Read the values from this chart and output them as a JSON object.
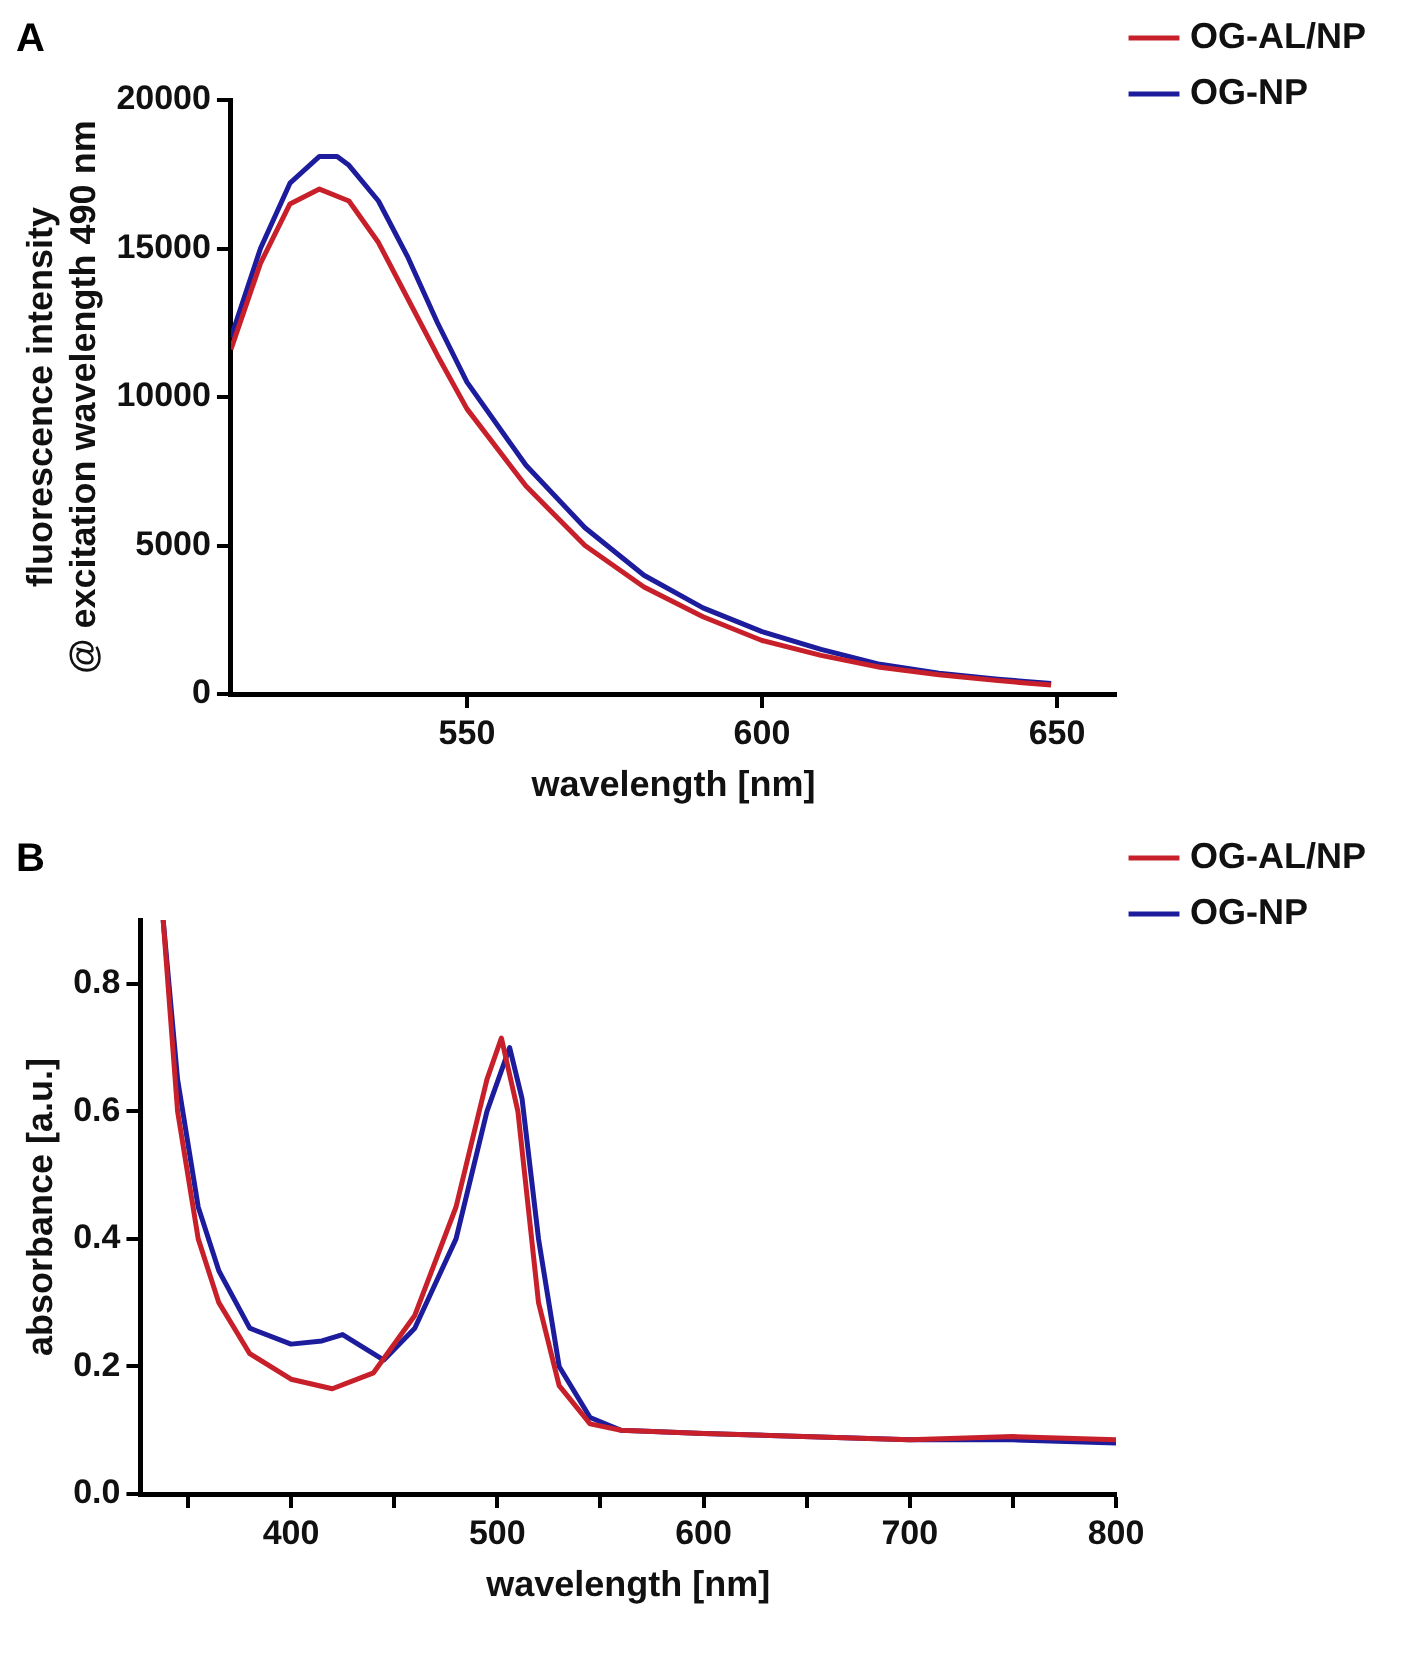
{
  "chart_data": [
    {
      "type": "line",
      "title": "A",
      "xlabel": "wavelength [nm]",
      "ylabel": "fluorescence intensity\n@ excitation wavelength 490 nm",
      "xlim": [
        510,
        660
      ],
      "xticks": [
        550,
        600,
        650
      ],
      "ylim": [
        0,
        20000
      ],
      "yticks": [
        0,
        5000,
        10000,
        15000,
        20000
      ],
      "grid": false,
      "legend": "top right",
      "marker": "none",
      "series": [
        {
          "name": "OG-AL/NP",
          "color": "#c8202a",
          "x": [
            510,
            515,
            520,
            525,
            530,
            535,
            540,
            545,
            550,
            560,
            570,
            580,
            590,
            600,
            610,
            620,
            630,
            640,
            649
          ],
          "values": [
            11600,
            14500,
            16500,
            17000,
            16600,
            15200,
            13300,
            11400,
            9600,
            7000,
            5000,
            3600,
            2600,
            1800,
            1300,
            900,
            650,
            450,
            300
          ]
        },
        {
          "name": "OG-NP",
          "color": "#1c1c9c",
          "x": [
            510,
            515,
            520,
            525,
            528,
            530,
            535,
            540,
            545,
            550,
            560,
            570,
            580,
            590,
            600,
            610,
            620,
            630,
            640,
            649
          ],
          "values": [
            12000,
            15000,
            17200,
            18100,
            18100,
            17800,
            16600,
            14700,
            12500,
            10500,
            7700,
            5600,
            4000,
            2900,
            2100,
            1500,
            1000,
            700,
            500,
            350
          ]
        }
      ]
    },
    {
      "type": "line",
      "title": "B",
      "xlabel": "wavelength [nm]",
      "ylabel": "absorbance [a.u.]",
      "xlim": [
        327,
        800
      ],
      "xticks": [
        {
          "value": 350,
          "label": null
        },
        400,
        {
          "value": 450,
          "label": null
        },
        500,
        {
          "value": 550,
          "label": null
        },
        600,
        {
          "value": 650,
          "label": null
        },
        700,
        {
          "value": 750,
          "label": null
        },
        800
      ],
      "ylim": [
        0,
        0.9
      ],
      "yticks": [
        {
          "value": 0,
          "label": "0.0"
        },
        0.2,
        0.4,
        0.6,
        0.8
      ],
      "grid": false,
      "legend": "top right",
      "marker": "none",
      "series": [
        {
          "name": "OG-AL/NP",
          "color": "#c8202a",
          "x": [
            338,
            345,
            355,
            365,
            380,
            400,
            420,
            440,
            460,
            480,
            495,
            502,
            510,
            520,
            530,
            545,
            560,
            600,
            700,
            750,
            800
          ],
          "values": [
            0.9,
            0.6,
            0.4,
            0.3,
            0.22,
            0.18,
            0.165,
            0.19,
            0.28,
            0.45,
            0.65,
            0.715,
            0.6,
            0.3,
            0.17,
            0.11,
            0.1,
            0.095,
            0.085,
            0.09,
            0.085
          ]
        },
        {
          "name": "OG-NP",
          "color": "#1c1c9c",
          "x": [
            338,
            345,
            355,
            365,
            380,
            400,
            415,
            425,
            435,
            445,
            460,
            480,
            495,
            506,
            512,
            520,
            530,
            545,
            560,
            600,
            700,
            750,
            800
          ],
          "values": [
            0.9,
            0.65,
            0.45,
            0.35,
            0.26,
            0.235,
            0.24,
            0.25,
            0.23,
            0.21,
            0.26,
            0.4,
            0.6,
            0.7,
            0.62,
            0.4,
            0.2,
            0.12,
            0.1,
            0.095,
            0.085,
            0.085,
            0.08
          ]
        }
      ]
    }
  ]
}
